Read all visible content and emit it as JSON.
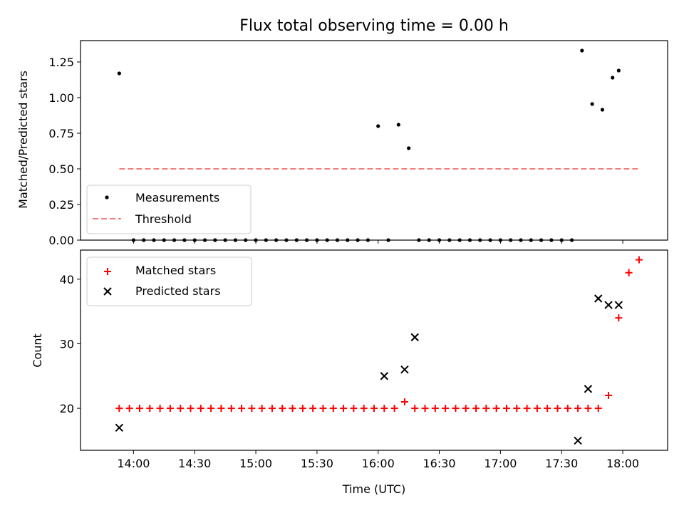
{
  "chart_data": [
    {
      "type": "scatter",
      "title": "Flux total observing time = 0.00 h",
      "xlabel": "",
      "ylabel": "Matched/Predicted stars",
      "ylim": [
        0,
        1.4
      ],
      "yticks": [
        0.0,
        0.25,
        0.5,
        0.75,
        1.0,
        1.25
      ],
      "ytick_labels": [
        "0.00",
        "0.25",
        "0.50",
        "0.75",
        "1.00",
        "1.25"
      ],
      "xlim_minutes": [
        814,
        1102
      ],
      "legend": {
        "placement": "lower-left",
        "entries": [
          "Measurements",
          "Threshold"
        ]
      },
      "series": [
        {
          "name": "Measurements",
          "marker": "dot",
          "color": "#000000",
          "x_minutes": [
            833,
            840,
            845,
            850,
            855,
            860,
            865,
            870,
            875,
            880,
            885,
            890,
            895,
            900,
            905,
            910,
            915,
            920,
            925,
            930,
            935,
            940,
            945,
            950,
            955,
            960,
            965,
            970,
            975,
            980,
            985,
            990,
            995,
            1000,
            1005,
            1010,
            1015,
            1020,
            1025,
            1030,
            1035,
            1040,
            1045,
            1050,
            1055,
            1060,
            1065,
            1070,
            1075,
            1078,
            1083,
            1088
          ],
          "values": [
            1.17,
            0,
            0,
            0,
            0,
            0,
            0,
            0,
            0,
            0,
            0,
            0,
            0,
            0,
            0,
            0,
            0,
            0,
            0,
            0,
            0,
            0,
            0,
            0,
            0,
            0.8,
            0,
            0.81,
            0.645,
            0,
            0,
            0,
            0,
            0,
            0,
            0,
            0,
            0,
            0,
            0,
            0,
            0,
            0,
            0,
            0,
            1.33,
            0.955,
            0.915,
            1.14,
            1.19,
            null,
            null
          ]
        },
        {
          "name": "Threshold",
          "line": "dashed",
          "color": "#f08080",
          "x_minutes": [
            833,
            1088
          ],
          "values": [
            0.5,
            0.5
          ]
        }
      ]
    },
    {
      "type": "scatter",
      "xlabel": "Time (UTC)",
      "ylabel": "Count",
      "ylim": [
        13.5,
        44.5
      ],
      "yticks": [
        20,
        30,
        40
      ],
      "ytick_labels": [
        "20",
        "30",
        "40"
      ],
      "xlim_minutes": [
        814,
        1102
      ],
      "xticks_minutes": [
        840,
        870,
        900,
        930,
        960,
        990,
        1020,
        1050,
        1080
      ],
      "xtick_labels": [
        "14:00",
        "14:30",
        "15:00",
        "15:30",
        "16:00",
        "16:30",
        "17:00",
        "17:30",
        "18:00"
      ],
      "legend": {
        "placement": "upper-left",
        "entries": [
          "Matched stars",
          "Predicted stars"
        ]
      },
      "series": [
        {
          "name": "Matched stars",
          "marker": "plus",
          "color": "#ff0000",
          "x_minutes": [
            833,
            838,
            843,
            848,
            853,
            858,
            863,
            868,
            873,
            878,
            883,
            888,
            893,
            898,
            903,
            908,
            913,
            918,
            923,
            928,
            933,
            938,
            943,
            948,
            953,
            958,
            963,
            968,
            973,
            978,
            983,
            988,
            993,
            998,
            1003,
            1008,
            1013,
            1018,
            1023,
            1028,
            1033,
            1038,
            1043,
            1048,
            1053,
            1058,
            1063,
            1068,
            1073,
            1078,
            1083,
            1088
          ],
          "values": [
            20,
            20,
            20,
            20,
            20,
            20,
            20,
            20,
            20,
            20,
            20,
            20,
            20,
            20,
            20,
            20,
            20,
            20,
            20,
            20,
            20,
            20,
            20,
            20,
            20,
            20,
            20,
            20,
            21,
            20,
            20,
            20,
            20,
            20,
            20,
            20,
            20,
            20,
            20,
            20,
            20,
            20,
            20,
            20,
            20,
            20,
            20,
            20,
            22,
            34,
            41,
            43
          ]
        },
        {
          "name": "Predicted stars",
          "marker": "x",
          "color": "#000000",
          "x_minutes": [
            833,
            963,
            973,
            978,
            1058,
            1063,
            1068,
            1073,
            1078
          ],
          "values": [
            17,
            25,
            26,
            31,
            15,
            23,
            37,
            36,
            36
          ]
        }
      ]
    }
  ]
}
